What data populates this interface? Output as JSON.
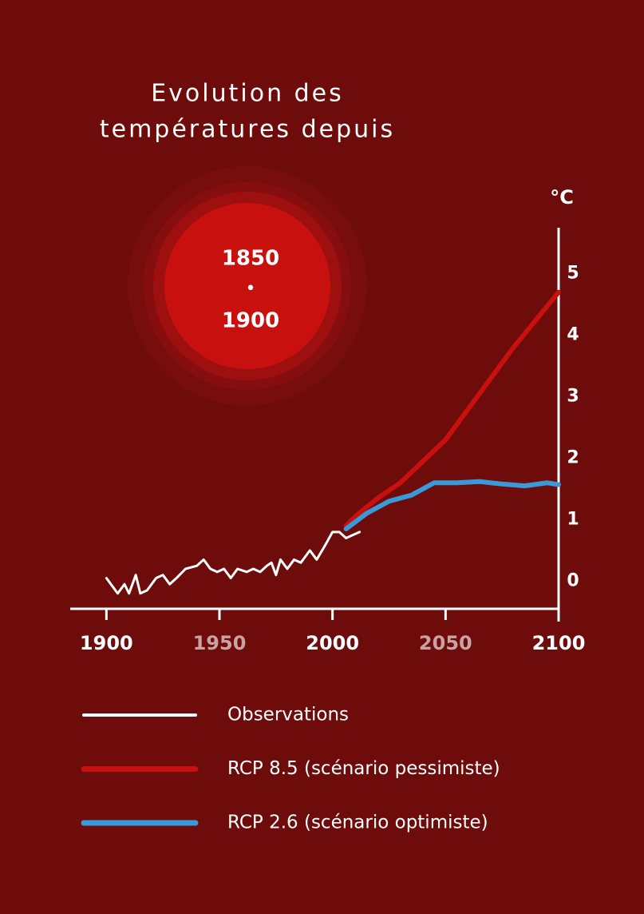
{
  "chart_data": {
    "type": "line",
    "title": [
      "Evolution des",
      "températures depuis"
    ],
    "badge": [
      "1850",
      "•",
      "1900"
    ],
    "ylabel": "°C",
    "xlim": [
      1884,
      2100
    ],
    "ylim": [
      -0.45,
      5.75
    ],
    "xticks": [
      1900,
      1950,
      2000,
      2050,
      2100
    ],
    "xtick_colors": [
      "#ffffff",
      "#c9a3a3",
      "#ffffff",
      "#c9a3a3",
      "#ffffff"
    ],
    "yticks": [
      0,
      1,
      2,
      3,
      4,
      5
    ],
    "series": [
      {
        "name": "Observations",
        "color": "#ffffff",
        "x": [
          1900,
          1903,
          1905,
          1908,
          1910,
          1913,
          1915,
          1918,
          1922,
          1925,
          1928,
          1931,
          1935,
          1940,
          1943,
          1946,
          1949,
          1952,
          1955,
          1958,
          1962,
          1965,
          1968,
          1971,
          1973,
          1975,
          1977,
          1980,
          1983,
          1986,
          1990,
          1993,
          1997,
          2000,
          2003,
          2006,
          2009,
          2012
        ],
        "values": [
          0.05,
          -0.1,
          -0.2,
          -0.05,
          -0.2,
          0.1,
          -0.2,
          -0.15,
          0.05,
          0.1,
          -0.05,
          0.05,
          0.2,
          0.25,
          0.35,
          0.2,
          0.15,
          0.2,
          0.05,
          0.2,
          0.15,
          0.2,
          0.15,
          0.25,
          0.3,
          0.1,
          0.35,
          0.2,
          0.35,
          0.3,
          0.5,
          0.35,
          0.6,
          0.8,
          0.8,
          0.7,
          0.75,
          0.8
        ]
      },
      {
        "name": "RCP 8.5 (scénario pessimiste)",
        "color": "#c8100f",
        "x": [
          2006,
          2010,
          2020,
          2030,
          2040,
          2050,
          2060,
          2070,
          2080,
          2090,
          2100
        ],
        "values": [
          0.9,
          1.05,
          1.35,
          1.6,
          1.95,
          2.3,
          2.8,
          3.3,
          3.8,
          4.25,
          4.7
        ]
      },
      {
        "name": "RCP 2.6 (scénario optimiste)",
        "color": "#3a9ad9",
        "x": [
          2006,
          2015,
          2025,
          2035,
          2045,
          2055,
          2065,
          2075,
          2085,
          2095,
          2100
        ],
        "values": [
          0.85,
          1.1,
          1.3,
          1.4,
          1.6,
          1.6,
          1.62,
          1.58,
          1.55,
          1.6,
          1.57
        ]
      }
    ]
  }
}
